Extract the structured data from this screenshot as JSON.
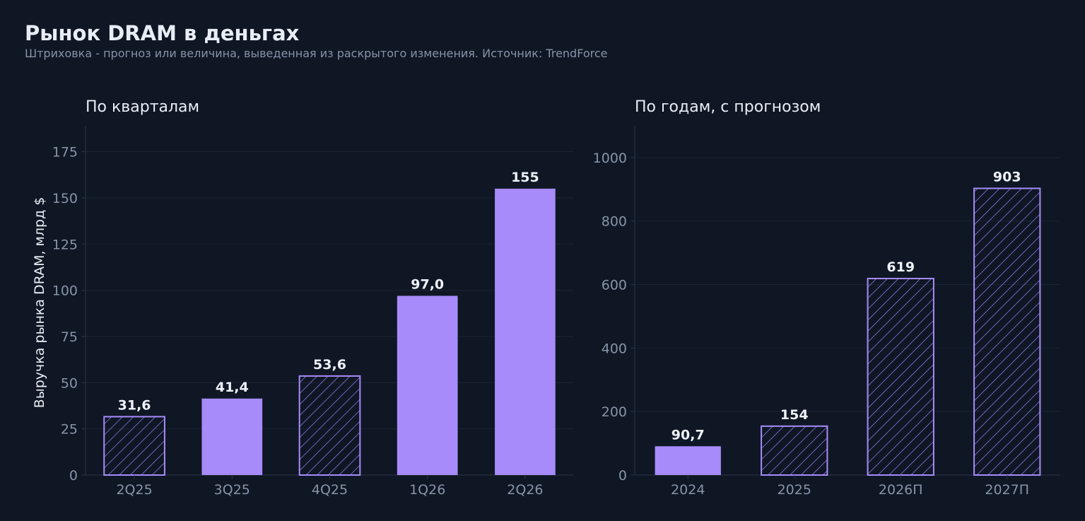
{
  "title": "Рынок DRAM в деньгах",
  "subtitle": "Штриховка - прогноз или величина, выведенная из раскрытого изменения. Источник: TrendForce",
  "colors": {
    "background": "#0f1724",
    "bar": "#a78bfa",
    "hatch_border": "#a78bfa",
    "hatch_line": "#8b75e0",
    "grid": "#1b2434",
    "axis": "#2a3446",
    "tick_text": "#8793a8",
    "text": "#e8edf5"
  },
  "chart_data": [
    {
      "type": "bar",
      "title": "По кварталам",
      "ylabel": "Выручка рынка DRAM, млрд $",
      "xlabel": "",
      "categories": [
        "2Q25",
        "3Q25",
        "4Q25",
        "1Q26",
        "2Q26"
      ],
      "values": [
        31.6,
        41.4,
        53.6,
        97.0,
        155
      ],
      "value_labels": [
        "31,6",
        "41,4",
        "53,6",
        "97,0",
        "155"
      ],
      "hatched": [
        true,
        false,
        true,
        false,
        false
      ],
      "ylim": [
        0,
        189
      ],
      "yticks": [
        0,
        25,
        50,
        75,
        100,
        125,
        150,
        175
      ],
      "grid": true
    },
    {
      "type": "bar",
      "title": "По годам, с прогнозом",
      "ylabel": "",
      "xlabel": "",
      "categories": [
        "2024",
        "2025",
        "2026П",
        "2027П"
      ],
      "values": [
        90.7,
        154,
        619,
        903
      ],
      "value_labels": [
        "90,7",
        "154",
        "619",
        "903"
      ],
      "hatched": [
        false,
        true,
        true,
        true
      ],
      "ylim": [
        0,
        1100
      ],
      "yticks": [
        0,
        200,
        400,
        600,
        800,
        1000
      ],
      "grid": true
    }
  ]
}
